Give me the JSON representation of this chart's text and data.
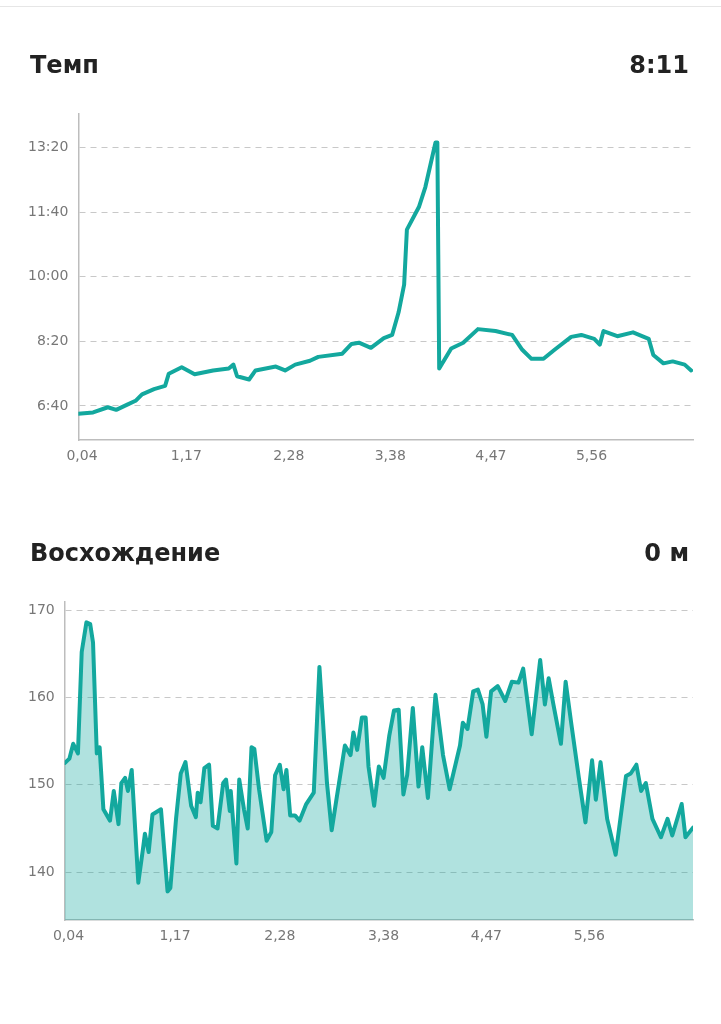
{
  "chart_data": [
    {
      "type": "line",
      "title": "Темп",
      "subtitle": "8:11",
      "color": "#13a89e",
      "line_style": "solid",
      "marker": "none",
      "grid": "y",
      "x": [
        0,
        0.16,
        0.32,
        0.41,
        0.53,
        0.62,
        0.69,
        0.82,
        0.94,
        0.98,
        1.12,
        1.26,
        1.46,
        1.63,
        1.68,
        1.72,
        1.85,
        1.92,
        2.14,
        2.24,
        2.35,
        2.51,
        2.6,
        2.86,
        2.96,
        3.04,
        3.17,
        3.31,
        3.4,
        3.47,
        3.53,
        3.56,
        3.69,
        3.76,
        3.87,
        3.89,
        3.91,
        4.04,
        4.17,
        4.33,
        4.52,
        4.7,
        4.81,
        4.91,
        5.04,
        5.16,
        5.34,
        5.45,
        5.59,
        5.65,
        5.69,
        5.84,
        6.01,
        6.18,
        6.23,
        6.34,
        6.44,
        6.57,
        6.64
      ],
      "values": [
        388,
        390,
        398,
        394,
        402,
        408,
        418,
        426,
        431,
        450,
        460,
        449,
        455,
        458,
        464,
        446,
        441,
        455,
        461,
        455,
        464,
        470,
        476,
        481,
        496,
        498,
        490,
        505,
        510,
        545,
        588,
        673,
        708,
        739,
        808,
        808,
        458,
        489,
        498,
        519,
        516,
        510,
        487,
        473,
        473,
        487,
        507,
        510,
        504,
        495,
        516,
        508,
        514,
        504,
        479,
        466,
        469,
        464,
        455
      ],
      "xlim": [
        0,
        6.66
      ],
      "xticks": [
        {
          "value": 0.04,
          "label": "0,04"
        },
        {
          "value": 1.17,
          "label": "1,17"
        },
        {
          "value": 2.28,
          "label": "2,28"
        },
        {
          "value": 3.38,
          "label": "3,38"
        },
        {
          "value": 4.47,
          "label": "4,47"
        },
        {
          "value": 5.56,
          "label": "5,56"
        }
      ],
      "ylim": [
        347,
        853
      ],
      "yticks": [
        {
          "value": 400,
          "label": "6:40"
        },
        {
          "value": 500,
          "label": "8:20"
        },
        {
          "value": 600,
          "label": "10:00"
        },
        {
          "value": 700,
          "label": "11:40"
        },
        {
          "value": 800,
          "label": "13:20"
        }
      ]
    },
    {
      "type": "area",
      "title": "Восхождение",
      "subtitle": "0 м",
      "color": "#13a89e",
      "line_style": "solid",
      "marker": "none",
      "grid": "y",
      "x": [
        0,
        0.05,
        0.09,
        0.14,
        0.18,
        0.23,
        0.27,
        0.3,
        0.34,
        0.37,
        0.41,
        0.48,
        0.52,
        0.57,
        0.6,
        0.64,
        0.67,
        0.71,
        0.78,
        0.83,
        0.85,
        0.89,
        0.93,
        1.02,
        1.09,
        1.12,
        1.18,
        1.23,
        1.28,
        1.34,
        1.39,
        1.41,
        1.44,
        1.48,
        1.53,
        1.57,
        1.62,
        1.68,
        1.71,
        1.75,
        1.76,
        1.82,
        1.85,
        1.9,
        1.94,
        1.98,
        2.01,
        2.06,
        2.14,
        2.19,
        2.23,
        2.28,
        2.32,
        2.35,
        2.39,
        2.44,
        2.49,
        2.56,
        2.64,
        2.7,
        2.78,
        2.83,
        2.88,
        2.97,
        3.03,
        3.06,
        3.1,
        3.15,
        3.19,
        3.22,
        3.28,
        3.33,
        3.38,
        3.44,
        3.49,
        3.54,
        3.59,
        3.63,
        3.69,
        3.75,
        3.79,
        3.85,
        3.93,
        4.01,
        4.08,
        4.19,
        4.22,
        4.27,
        4.33,
        4.38,
        4.43,
        4.47,
        4.52,
        4.59,
        4.67,
        4.74,
        4.81,
        4.86,
        4.95,
        5.04,
        5.09,
        5.13,
        5.18,
        5.26,
        5.31,
        5.37,
        5.45,
        5.52,
        5.59,
        5.63,
        5.68,
        5.75,
        5.84,
        5.95,
        6,
        6.06,
        6.11,
        6.16,
        6.23,
        6.32,
        6.39,
        6.44,
        6.54,
        6.58,
        6.66
      ],
      "values": [
        152.5,
        153,
        154.7,
        153.6,
        165.2,
        168.6,
        168.4,
        166.3,
        153.6,
        154.3,
        147.2,
        145.9,
        149.3,
        145.5,
        150.2,
        150.8,
        149.3,
        151.7,
        138.8,
        142.7,
        144.4,
        142.3,
        146.6,
        147.2,
        137.8,
        138.2,
        146.1,
        151.3,
        152.6,
        147.6,
        146.3,
        149.1,
        148,
        151.9,
        152.3,
        145.3,
        145,
        150.2,
        150.6,
        147,
        149.3,
        141,
        150.6,
        147.2,
        145,
        154.3,
        154.1,
        149.5,
        143.6,
        144.6,
        151.1,
        152.3,
        149.5,
        151.7,
        146.5,
        146.5,
        145.9,
        147.8,
        149.1,
        163.5,
        150.2,
        144.8,
        148.3,
        154.5,
        153.4,
        156,
        154,
        157.7,
        157.7,
        152.1,
        147.6,
        152.1,
        150.8,
        155.6,
        158.5,
        158.6,
        148.9,
        151.1,
        158.8,
        149.8,
        154.3,
        148.5,
        160.3,
        153.4,
        149.5,
        154.5,
        157.1,
        156.4,
        160.7,
        160.9,
        159.2,
        155.5,
        160.7,
        161.3,
        159.6,
        161.8,
        161.7,
        163.3,
        155.8,
        164.3,
        159.2,
        162.2,
        159.2,
        154.7,
        161.8,
        157,
        150.8,
        145.7,
        152.8,
        148.3,
        152.6,
        146.1,
        142,
        151,
        151.3,
        152.3,
        149.3,
        150.2,
        146.1,
        144,
        146.1,
        144.2,
        147.8,
        144,
        145.1
      ],
      "xlim": [
        0,
        6.66
      ],
      "xticks": [
        {
          "value": 0.04,
          "label": "0,04"
        },
        {
          "value": 1.17,
          "label": "1,17"
        },
        {
          "value": 2.28,
          "label": "2,28"
        },
        {
          "value": 3.38,
          "label": "3,38"
        },
        {
          "value": 4.47,
          "label": "4,47"
        },
        {
          "value": 5.56,
          "label": "5,56"
        }
      ],
      "ylim": [
        134.5,
        171
      ],
      "yticks": [
        140,
        150,
        160,
        170
      ]
    }
  ]
}
